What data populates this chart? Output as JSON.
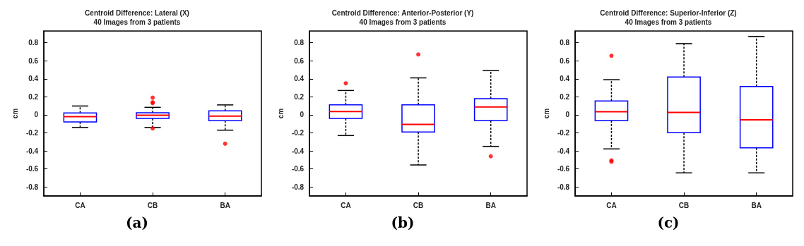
{
  "chart_data": [
    {
      "type": "box",
      "title": "Centroid Difference: Lateral (X)",
      "subtitle": "40 Images from 3 patients",
      "ylabel": "cm",
      "annotations": [
        "(a)"
      ],
      "categories": [
        "CA",
        "CB",
        "BA"
      ],
      "color": "#0000ff",
      "ylim": [
        -0.9,
        0.93
      ],
      "yticks": [
        -0.8,
        -0.6,
        -0.4,
        -0.2,
        0,
        0.2,
        0.4,
        0.6,
        0.8
      ],
      "grid": false,
      "legend": false,
      "boxes": [
        {
          "low": -0.14,
          "q1": -0.078,
          "median": -0.02,
          "q3": 0.02,
          "high": 0.098
        },
        {
          "low": -0.14,
          "q1": -0.04,
          "median": -0.005,
          "q3": 0.022,
          "high": 0.083,
          "outliers": [
            0.19,
            0.14,
            0.13,
            -0.15
          ]
        },
        {
          "low": -0.17,
          "q1": -0.066,
          "median": -0.015,
          "q3": 0.044,
          "high": 0.11,
          "outliers": [
            -0.32
          ]
        }
      ]
    },
    {
      "type": "box",
      "title": "Centroid Difference: Anterior-Posterior (Y)",
      "subtitle": "40 Images from 3 patients",
      "ylabel": "cm",
      "annotations": [
        "(b)"
      ],
      "categories": [
        "CA",
        "CB",
        "BA"
      ],
      "color": "#0000ff",
      "ylim": [
        -0.9,
        0.93
      ],
      "yticks": [
        -0.8,
        -0.6,
        -0.4,
        -0.2,
        0,
        0.2,
        0.4,
        0.6,
        0.8
      ],
      "grid": false,
      "legend": false,
      "boxes": [
        {
          "low": -0.23,
          "q1": -0.04,
          "median": 0.037,
          "q3": 0.11,
          "high": 0.27,
          "outliers": [
            0.35
          ]
        },
        {
          "low": -0.556,
          "q1": -0.19,
          "median": -0.107,
          "q3": 0.11,
          "high": 0.41,
          "outliers": [
            0.67
          ]
        },
        {
          "low": -0.35,
          "q1": -0.063,
          "median": 0.088,
          "q3": 0.18,
          "high": 0.49,
          "outliers": [
            -0.46
          ]
        }
      ]
    },
    {
      "type": "box",
      "title": "Centroid Difference: Superior-Inferior (Z)",
      "subtitle": "40 Images from 3 patients",
      "ylabel": "cm",
      "annotations": [
        "(c)"
      ],
      "categories": [
        "CA",
        "CB",
        "BA"
      ],
      "color": "#0000ff",
      "ylim": [
        -0.9,
        0.93
      ],
      "yticks": [
        -0.8,
        -0.6,
        -0.4,
        -0.2,
        0,
        0.2,
        0.4,
        0.6,
        0.8
      ],
      "grid": false,
      "legend": false,
      "boxes": [
        {
          "low": -0.378,
          "q1": -0.063,
          "median": 0.034,
          "q3": 0.154,
          "high": 0.39,
          "outliers": [
            0.656,
            -0.505,
            -0.52
          ]
        },
        {
          "low": -0.644,
          "q1": -0.198,
          "median": 0.027,
          "q3": 0.42,
          "high": 0.79
        },
        {
          "low": -0.644,
          "q1": -0.366,
          "median": -0.056,
          "q3": 0.315,
          "high": 0.87
        }
      ]
    }
  ]
}
